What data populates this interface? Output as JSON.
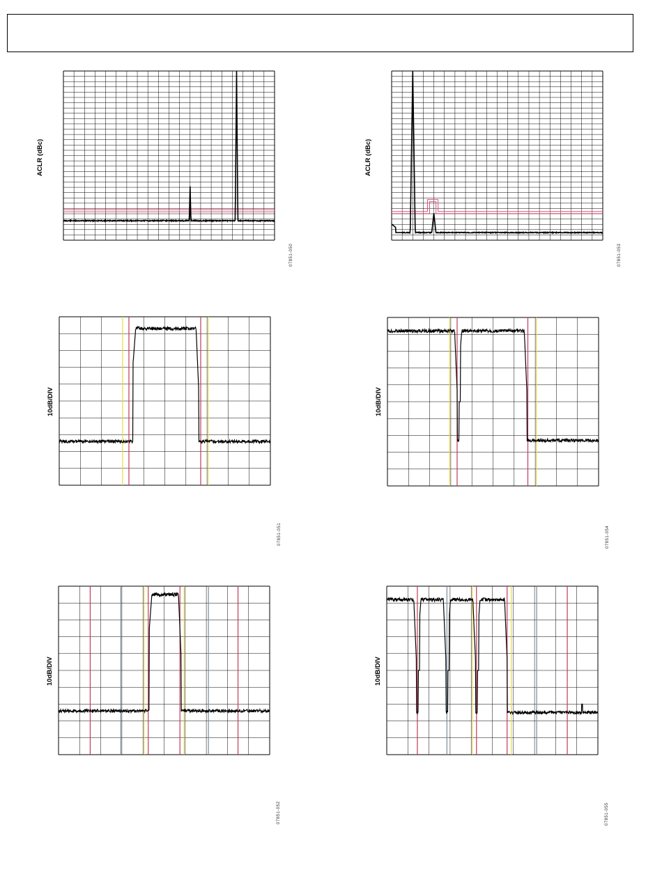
{
  "chart_data": [
    {
      "id": "fig-050",
      "type": "line",
      "ylabel": "ACLR (dBc)",
      "figure_id": "07851-050",
      "grid": {
        "vdiv": 20,
        "hdiv": 32
      },
      "trace": {
        "baseline_frac": 0.885,
        "noise": 0.006,
        "peaks": [
          {
            "pos": 0.6,
            "height_frac": 0.23,
            "width": 0.004
          },
          {
            "pos": 0.82,
            "height_frac": 1.0,
            "width": 0.006
          }
        ]
      },
      "limit_line": {
        "level_frac": 0.82,
        "color": "#d9537a"
      }
    },
    {
      "id": "fig-053",
      "type": "line",
      "ylabel": "ACLR (dBc)",
      "figure_id": "07851-053",
      "grid": {
        "vdiv": 20,
        "hdiv": 32
      },
      "trace": {
        "baseline_frac": 0.955,
        "noise": 0.005,
        "peaks": [
          {
            "pos": 0.1,
            "height_frac": 1.0,
            "width": 0.012
          },
          {
            "pos": 0.2,
            "height_frac": 0.12,
            "width": 0.01
          }
        ]
      },
      "limit_line": {
        "level_frac": 0.83,
        "color": "#d9537a"
      }
    },
    {
      "id": "fig-051",
      "type": "line",
      "ylabel": "10dB/DIV",
      "figure_id": "07851-051",
      "grid": {
        "vdiv": 10,
        "hdiv": 10
      },
      "trace": {
        "low_frac": 0.74,
        "high_frac": 0.07,
        "blocks": [
          [
            0.35,
            0.66
          ]
        ]
      },
      "markers": [
        {
          "x": 0.3,
          "color": "#e8d84a"
        },
        {
          "x": 0.33,
          "color": "#c0395a"
        },
        {
          "x": 0.67,
          "color": "#c0395a"
        },
        {
          "x": 0.705,
          "color": "#e8d84a"
        }
      ]
    },
    {
      "id": "fig-054",
      "type": "line",
      "ylabel": "10dB/DIV",
      "figure_id": "07851-054",
      "grid": {
        "vdiv": 10,
        "hdiv": 10
      },
      "trace": {
        "low_frac": 0.73,
        "high_frac": 0.08,
        "blocks": [
          [
            0.0,
            0.33
          ],
          [
            0.34,
            0.66
          ]
        ]
      },
      "markers": [
        {
          "x": 0.295,
          "color": "#e8d84a"
        },
        {
          "x": 0.33,
          "color": "#c0395a"
        },
        {
          "x": 0.665,
          "color": "#c0395a"
        },
        {
          "x": 0.705,
          "color": "#e8d84a"
        }
      ]
    },
    {
      "id": "fig-052",
      "type": "line",
      "ylabel": "10dB/DIV",
      "figure_id": "07851-052",
      "grid": {
        "vdiv": 10,
        "hdiv": 10
      },
      "trace": {
        "low_frac": 0.74,
        "high_frac": 0.05,
        "blocks": [
          [
            0.43,
            0.58
          ]
        ]
      },
      "markers": [
        {
          "x": 0.15,
          "color": "#c0395a"
        },
        {
          "x": 0.295,
          "color": "#7a8aa0"
        },
        {
          "x": 0.405,
          "color": "#e8d84a"
        },
        {
          "x": 0.425,
          "color": "#c0395a"
        },
        {
          "x": 0.575,
          "color": "#c0395a"
        },
        {
          "x": 0.595,
          "color": "#e8d84a"
        },
        {
          "x": 0.71,
          "color": "#7a8aa0"
        },
        {
          "x": 0.85,
          "color": "#c0395a"
        }
      ]
    },
    {
      "id": "fig-055",
      "type": "line",
      "ylabel": "10dB/DIV",
      "figure_id": "07851-055",
      "grid": {
        "vdiv": 10,
        "hdiv": 10
      },
      "trace": {
        "low_frac": 0.75,
        "high_frac": 0.08,
        "blocks": [
          [
            0.0,
            0.14
          ],
          [
            0.15,
            0.28
          ],
          [
            0.29,
            0.42
          ],
          [
            0.43,
            0.57
          ]
        ],
        "spike": {
          "pos": 0.925,
          "height_frac": 0.05
        }
      },
      "markers": [
        {
          "x": 0.145,
          "color": "#c0395a"
        },
        {
          "x": 0.285,
          "color": "#7a8aa0"
        },
        {
          "x": 0.405,
          "color": "#e8d84a"
        },
        {
          "x": 0.425,
          "color": "#c0395a"
        },
        {
          "x": 0.57,
          "color": "#c0395a"
        },
        {
          "x": 0.59,
          "color": "#e8d84a"
        },
        {
          "x": 0.71,
          "color": "#7a8aa0"
        },
        {
          "x": 0.855,
          "color": "#c0395a"
        }
      ]
    }
  ]
}
